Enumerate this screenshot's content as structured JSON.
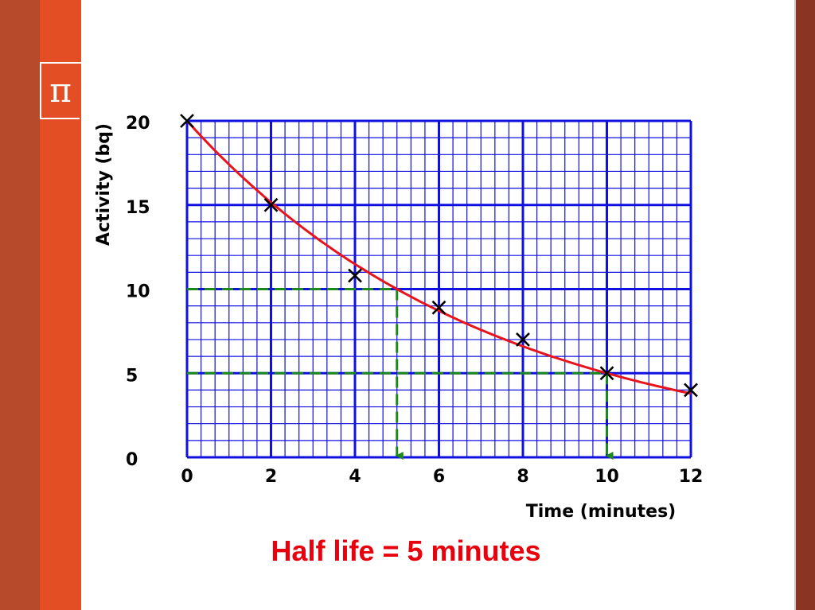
{
  "slide": {
    "pi_symbol": "π",
    "caption": "Half life = 5 minutes"
  },
  "colors": {
    "grid": "#1010e0",
    "curve": "#e8141c",
    "dashed": "#1a8a1a",
    "markers": "#000000",
    "caption": "#e8000d"
  },
  "chart_data": {
    "type": "line",
    "xlabel": "Time (minutes)",
    "ylabel": "Activity (bq)",
    "xlim": [
      0,
      12
    ],
    "ylim": [
      0,
      20
    ],
    "x_ticks": [
      "0",
      "2",
      "4",
      "6",
      "8",
      "10",
      "12"
    ],
    "y_ticks": [
      "0",
      "5",
      "10",
      "15",
      "20"
    ],
    "grid": true,
    "minor_grid": true,
    "points": [
      {
        "x": 0,
        "y": 20
      },
      {
        "x": 2,
        "y": 15
      },
      {
        "x": 4,
        "y": 10.8
      },
      {
        "x": 6,
        "y": 8.9
      },
      {
        "x": 8,
        "y": 7
      },
      {
        "x": 10,
        "y": 5
      },
      {
        "x": 12,
        "y": 4
      }
    ],
    "curve": {
      "initial": 20,
      "half_life": 5,
      "x_range": [
        0,
        12
      ]
    },
    "guides": [
      {
        "from_y": 10,
        "to_x": 5
      },
      {
        "from_y": 5,
        "to_x": 10
      }
    ]
  }
}
